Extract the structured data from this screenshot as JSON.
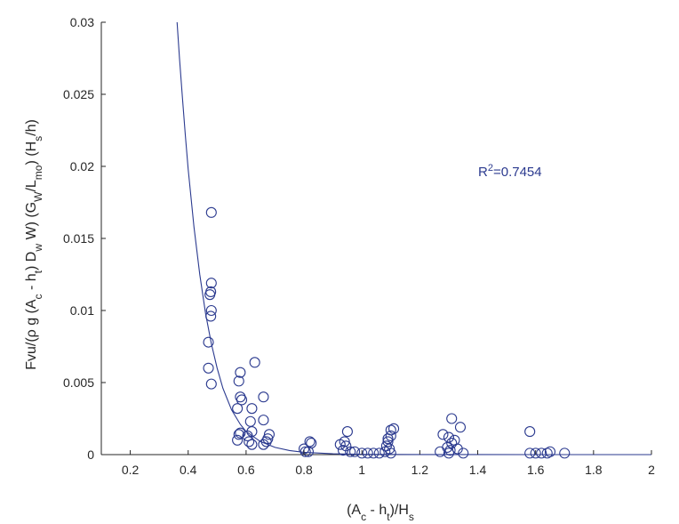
{
  "chart_data": {
    "type": "scatter",
    "title": "",
    "xlabel": "(A_c - h_t)/H_s",
    "ylabel": "Fvu/(ρ g (A_c - h_t) D_w W) (G_W/L_mo) (H_s/h)",
    "xlim": [
      0.1,
      2.0
    ],
    "ylim": [
      0,
      0.03
    ],
    "x_ticks": [
      0.2,
      0.4,
      0.6,
      0.8,
      1,
      1.2,
      1.4,
      1.6,
      1.8,
      2
    ],
    "x_tick_labels": [
      "0.2",
      "0.4",
      "0.6",
      "0.8",
      "1",
      "1.2",
      "1.4",
      "1.6",
      "1.8",
      "2"
    ],
    "y_ticks": [
      0,
      0.005,
      0.01,
      0.015,
      0.02,
      0.025,
      0.03
    ],
    "y_tick_labels": [
      "0",
      "0.005",
      "0.01",
      "0.015",
      "0.02",
      "0.025",
      "0.03"
    ],
    "grid": false,
    "annotation": "R²=0.7454",
    "colors": {
      "marker": "#2b3a8f",
      "axis": "#262626"
    },
    "fit_curve": {
      "x": [
        0.36,
        0.37,
        0.38,
        0.39,
        0.4,
        0.42,
        0.44,
        0.46,
        0.48,
        0.5,
        0.52,
        0.55,
        0.58,
        0.6,
        0.65,
        0.7,
        0.75,
        0.8,
        0.9,
        1.0,
        1.1,
        1.2,
        1.4,
        1.6,
        1.8,
        2.0
      ],
      "y": [
        0.0305,
        0.0275,
        0.0248,
        0.0222,
        0.0198,
        0.0158,
        0.0125,
        0.0098,
        0.0077,
        0.006,
        0.0046,
        0.0031,
        0.0021,
        0.0016,
        0.0009,
        0.0005,
        0.00028,
        0.00016,
        6e-05,
        2e-05,
        1e-05,
        5e-06,
        1e-06,
        5e-07,
        2e-07,
        1e-07
      ]
    },
    "series": [
      {
        "points": [
          [
            0.48,
            0.0168
          ],
          [
            0.48,
            0.0119
          ],
          [
            0.478,
            0.0113
          ],
          [
            0.475,
            0.0111
          ],
          [
            0.48,
            0.01
          ],
          [
            0.478,
            0.0096
          ],
          [
            0.47,
            0.0078
          ],
          [
            0.47,
            0.006
          ],
          [
            0.48,
            0.0049
          ],
          [
            0.58,
            0.0057
          ],
          [
            0.575,
            0.0051
          ],
          [
            0.58,
            0.004
          ],
          [
            0.585,
            0.0038
          ],
          [
            0.57,
            0.0032
          ],
          [
            0.63,
            0.0064
          ],
          [
            0.66,
            0.004
          ],
          [
            0.62,
            0.0032
          ],
          [
            0.66,
            0.0024
          ],
          [
            0.615,
            0.0023
          ],
          [
            0.58,
            0.0015
          ],
          [
            0.575,
            0.0014
          ],
          [
            0.57,
            0.001
          ],
          [
            0.62,
            0.0016
          ],
          [
            0.61,
            0.0009
          ],
          [
            0.62,
            0.0007
          ],
          [
            0.605,
            0.0013
          ],
          [
            0.68,
            0.0014
          ],
          [
            0.675,
            0.0011
          ],
          [
            0.67,
            0.0009
          ],
          [
            0.66,
            0.0007
          ],
          [
            0.8,
            0.0004
          ],
          [
            0.805,
            0.0002
          ],
          [
            0.815,
            0.0002
          ],
          [
            0.82,
            0.0009
          ],
          [
            0.825,
            0.0008
          ],
          [
            0.95,
            0.0016
          ],
          [
            0.94,
            0.0009
          ],
          [
            0.925,
            0.0007
          ],
          [
            0.945,
            0.0006
          ],
          [
            0.935,
            0.0003
          ],
          [
            0.96,
            0.0002
          ],
          [
            0.975,
            0.0002
          ],
          [
            1.0,
            0.0001
          ],
          [
            1.02,
            0.0001
          ],
          [
            1.04,
            0.0001
          ],
          [
            1.06,
            0.0001
          ],
          [
            1.09,
            0.0009
          ],
          [
            1.1,
            0.0017
          ],
          [
            1.11,
            0.0018
          ],
          [
            1.1,
            0.0013
          ],
          [
            1.09,
            0.0011
          ],
          [
            1.085,
            0.0006
          ],
          [
            1.095,
            0.0004
          ],
          [
            1.1,
            0.0001
          ],
          [
            1.08,
            0.0002
          ],
          [
            1.31,
            0.0025
          ],
          [
            1.28,
            0.0014
          ],
          [
            1.3,
            0.0012
          ],
          [
            1.32,
            0.001
          ],
          [
            1.31,
            0.0008
          ],
          [
            1.295,
            0.0005
          ],
          [
            1.305,
            0.0003
          ],
          [
            1.34,
            0.0019
          ],
          [
            1.33,
            0.0004
          ],
          [
            1.27,
            0.0002
          ],
          [
            1.35,
            0.0001
          ],
          [
            1.3,
            0.0001
          ],
          [
            1.58,
            0.0016
          ],
          [
            1.58,
            0.0001
          ],
          [
            1.6,
            0.0001
          ],
          [
            1.62,
            0.0001
          ],
          [
            1.64,
            0.0001
          ],
          [
            1.65,
            0.0002
          ],
          [
            1.7,
            0.0001
          ]
        ]
      }
    ]
  }
}
